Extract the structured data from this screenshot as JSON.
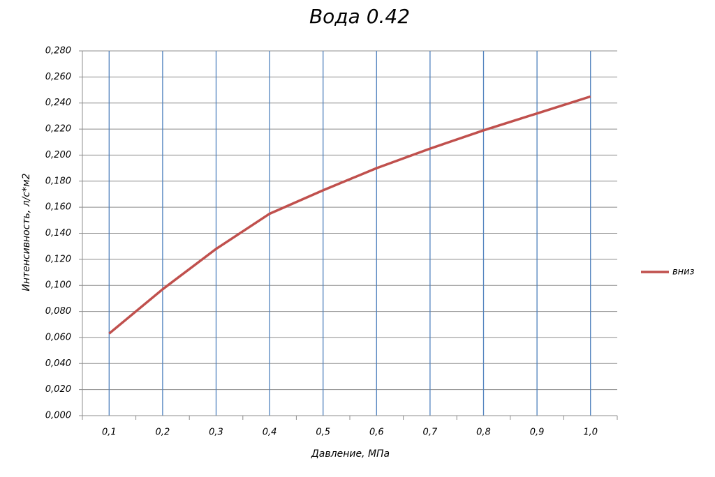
{
  "chart_data": {
    "type": "line",
    "title": "Вода  0.42",
    "x_label": "Давление, МПа",
    "y_label": "Интенсивность,  л/с*м2",
    "categories": [
      "0,1",
      "0,2",
      "0,3",
      "0,4",
      "0,5",
      "0,6",
      "0,7",
      "0,8",
      "0,9",
      "1,0"
    ],
    "series": [
      {
        "name": "вниз",
        "color": "#c0504d",
        "values": [
          0.063,
          0.097,
          0.128,
          0.155,
          0.173,
          0.19,
          0.205,
          0.219,
          0.232,
          0.245
        ]
      }
    ],
    "ylim": [
      0,
      0.28
    ],
    "yticks": [
      {
        "value": 0,
        "label": "0,000"
      },
      {
        "value": 0.02,
        "label": "0,020"
      },
      {
        "value": 0.04,
        "label": "0,040"
      },
      {
        "value": 0.06,
        "label": "0,060"
      },
      {
        "value": 0.08,
        "label": "0,080"
      },
      {
        "value": 0.1,
        "label": "0,100"
      },
      {
        "value": 0.12,
        "label": "0,120"
      },
      {
        "value": 0.14,
        "label": "0,140"
      },
      {
        "value": 0.16,
        "label": "0,160"
      },
      {
        "value": 0.18,
        "label": "0,180"
      },
      {
        "value": 0.2,
        "label": "0,200"
      },
      {
        "value": 0.22,
        "label": "0,220"
      },
      {
        "value": 0.24,
        "label": "0,240"
      },
      {
        "value": 0.26,
        "label": "0,260"
      },
      {
        "value": 0.28,
        "label": "0,280"
      }
    ],
    "grid": true,
    "legend": "right"
  }
}
